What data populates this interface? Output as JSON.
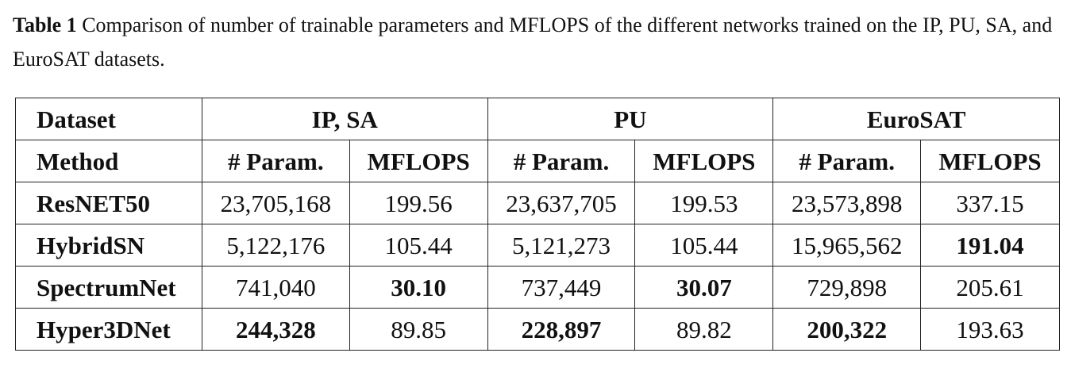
{
  "caption": {
    "label": "Table 1",
    "text": "Comparison of number of trainable parameters and MFLOPS of the different networks trained on the IP, PU, SA, and EuroSAT datasets."
  },
  "table": {
    "corner_top": "Dataset",
    "corner_bottom": "Method",
    "datasets": [
      "IP, SA",
      "PU",
      "EuroSAT"
    ],
    "subheaders": [
      "# Param.",
      "MFLOPS",
      "# Param.",
      "MFLOPS",
      "# Param.",
      "MFLOPS"
    ],
    "rows": [
      {
        "method": "ResNET50",
        "cells": [
          "23,705,168",
          "199.56",
          "23,637,705",
          "199.53",
          "23,573,898",
          "337.15"
        ],
        "bold": [
          false,
          false,
          false,
          false,
          false,
          false
        ]
      },
      {
        "method": "HybridSN",
        "cells": [
          "5,122,176",
          "105.44",
          "5,121,273",
          "105.44",
          "15,965,562",
          "191.04"
        ],
        "bold": [
          false,
          false,
          false,
          false,
          false,
          true
        ]
      },
      {
        "method": "SpectrumNet",
        "cells": [
          "741,040",
          "30.10",
          "737,449",
          "30.07",
          "729,898",
          "205.61"
        ],
        "bold": [
          false,
          true,
          false,
          true,
          false,
          false
        ]
      },
      {
        "method": "Hyper3DNet",
        "cells": [
          "244,328",
          "89.85",
          "228,897",
          "89.82",
          "200,322",
          "193.63"
        ],
        "bold": [
          true,
          false,
          true,
          false,
          true,
          false
        ]
      }
    ]
  }
}
